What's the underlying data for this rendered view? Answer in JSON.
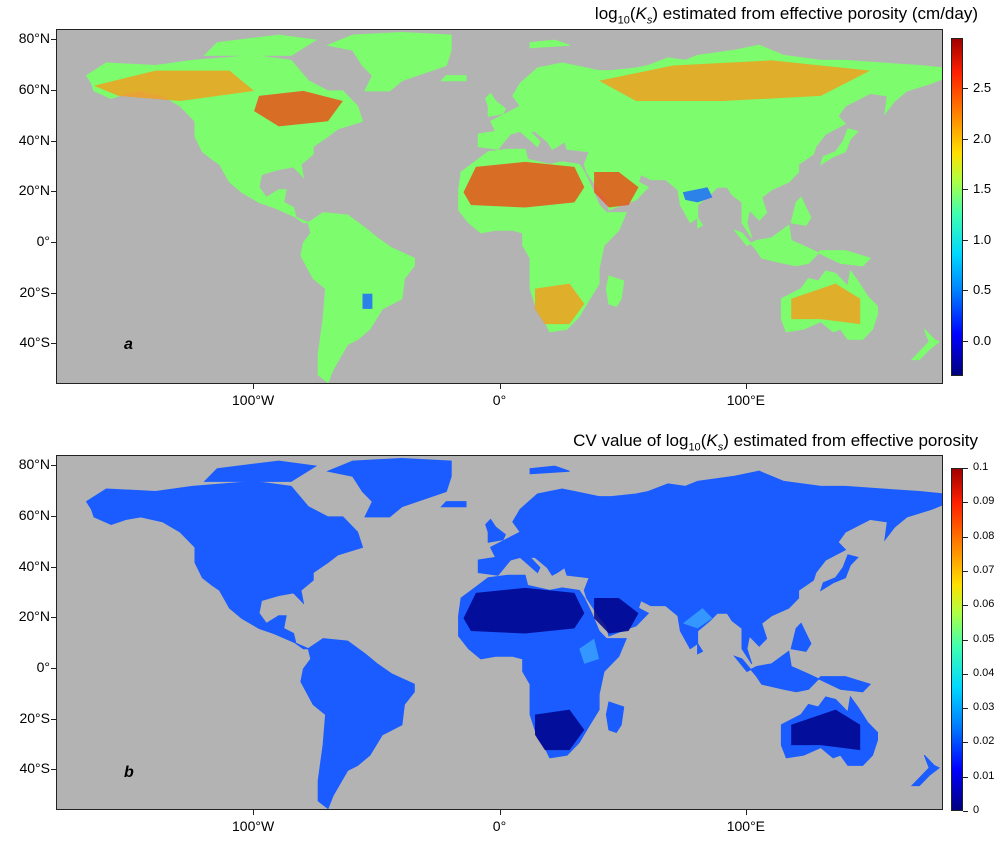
{
  "panels": [
    {
      "id": "a",
      "title_pre": "log",
      "title_sub": "10",
      "title_var": "K",
      "title_varsub": "s",
      "title_post": ") estimated from effective porosity  (cm/day)",
      "letter": "a",
      "colorbar_labels": [
        "2.5",
        "2.0",
        "1.5",
        "1.0",
        "0.5",
        "0.0"
      ],
      "colorbar_range": [
        -0.35,
        3.0
      ],
      "colorbar_ticks": [
        2.5,
        2.0,
        1.5,
        1.0,
        0.5,
        0.0
      ],
      "land_color": "#7dfc6e"
    },
    {
      "id": "b",
      "title_pre": "CV value of log",
      "title_sub": "10",
      "title_var": "K",
      "title_varsub": "s",
      "title_post": ") estimated from effective porosity",
      "letter": "b",
      "colorbar_labels": [
        "0.1",
        "0.09",
        "0.08",
        "0.07",
        "0.06",
        "0.05",
        "0.04",
        "0.03",
        "0.02",
        "0.01",
        "0"
      ],
      "colorbar_range": [
        0,
        0.1
      ],
      "colorbar_ticks": [
        0.1,
        0.09,
        0.08,
        0.07,
        0.06,
        0.05,
        0.04,
        0.03,
        0.02,
        0.01,
        0
      ],
      "land_color": "#1a5cff"
    }
  ],
  "axes": {
    "y_labels": [
      "80°N",
      "60°N",
      "40°N",
      "20°N",
      "0°",
      "20°S",
      "40°S"
    ],
    "y_values": [
      80,
      60,
      40,
      20,
      0,
      -20,
      -40
    ],
    "x_labels": [
      "100°W",
      "0°",
      "100°E"
    ],
    "x_values": [
      -100,
      0,
      100
    ],
    "lon_range": [
      -180,
      180
    ],
    "lat_range": [
      -56,
      84
    ]
  },
  "colors": {
    "ocean": "#b3b3b3",
    "high_a": "#e8541a",
    "mid_a": "#f0a020",
    "low_a": "#1e6cff",
    "high_b": "#00008a",
    "mid_b": "#3aa0ff"
  }
}
